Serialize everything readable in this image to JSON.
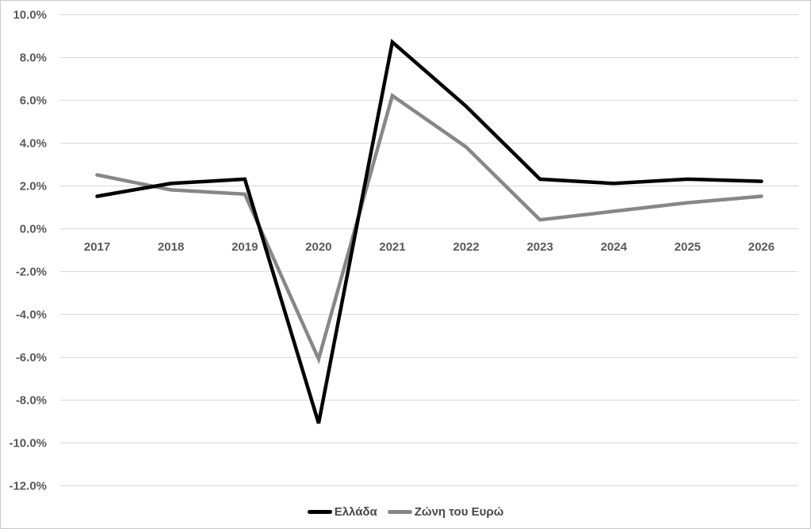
{
  "chart_data": {
    "type": "line",
    "title": "",
    "xlabel": "",
    "ylabel": "",
    "x_categories": [
      "2017",
      "2018",
      "2019",
      "2020",
      "2021",
      "2022",
      "2023",
      "2024",
      "2025",
      "2026"
    ],
    "series": [
      {
        "name": "Ελλάδα",
        "color": "#000000",
        "values": [
          1.5,
          2.1,
          2.3,
          -9.1,
          8.7,
          5.7,
          2.3,
          2.1,
          2.3,
          2.2
        ]
      },
      {
        "name": "Ζώνη του Ευρώ",
        "color": "#878787",
        "values": [
          2.5,
          1.8,
          1.6,
          -6.1,
          6.2,
          3.8,
          0.4,
          0.8,
          1.2,
          1.5
        ]
      }
    ],
    "y_axis": {
      "min": -12,
      "max": 10,
      "step": 2,
      "tick_decimals": 1,
      "tick_suffix": "%"
    },
    "grid": true,
    "gridlines_horizontal_only": true,
    "legend_position": "bottom-center",
    "x_labels_at_value": 0,
    "colors": {
      "grid": "#d9d9d9",
      "tick_text": "#595959",
      "legend_text": "#474747",
      "plot_background": "#ffffff",
      "chart_border": "#c9c9c9"
    }
  }
}
